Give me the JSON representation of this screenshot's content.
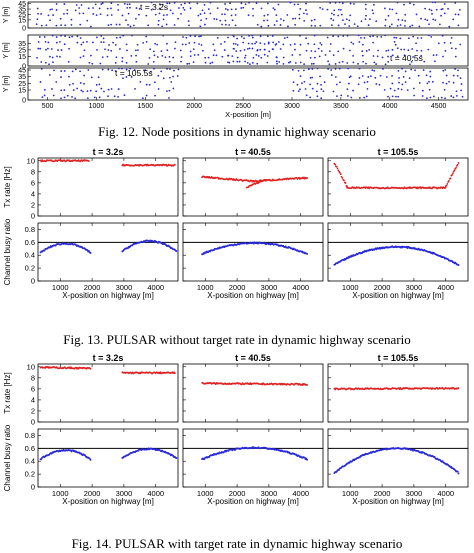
{
  "fig12": {
    "caption": "Fig. 12.   Node positions in dynamic highway scenario",
    "x_label": "X-position [m]",
    "x_ticks": [
      500,
      1000,
      1500,
      2000,
      2500,
      3000,
      3500,
      4000,
      4500
    ],
    "y_axis_label": "Y [m]",
    "panels": [
      {
        "time_label": "t = 3.2s",
        "y_ticks": [
          0,
          15,
          25,
          35,
          45
        ],
        "occupied_x": [
          [
            380,
            2320
          ],
          [
            2300,
            4720
          ]
        ]
      },
      {
        "time_label": "t = 40.5s",
        "y_ticks": [
          0,
          15,
          25,
          35
        ],
        "occupied_x": [
          [
            380,
            2820
          ],
          [
            2300,
            4720
          ]
        ]
      },
      {
        "time_label": "t = 105.5s",
        "y_ticks": [
          0,
          15,
          25,
          35,
          45
        ],
        "occupied_x": [
          [
            380,
            1850
          ],
          [
            3000,
            4720
          ]
        ]
      }
    ],
    "colors": {
      "points": "#2a2ad8"
    }
  },
  "fig13": {
    "caption": "Fig. 13.   PULSAR without target rate in dynamic highway scenario",
    "times": [
      "t = 3.2s",
      "t = 40.5s",
      "t = 105.5s"
    ],
    "top_ylabel": "Tx rate [Hz]",
    "bottom_ylabel": "Channel busy ratio",
    "xlabel": "X-position on highway [m]",
    "top_yticks": [
      0,
      2,
      4,
      6,
      8,
      10
    ],
    "bottom_yticks": [
      0,
      0.2,
      0.4,
      0.6,
      0.8
    ],
    "x_ticks": [
      1000,
      2000,
      3000,
      4000
    ],
    "reference_line": 0.6,
    "tx_rate": [
      {
        "segments": [
          {
            "x": [
              380,
              1900
            ],
            "y_start": 10,
            "y_end": 10
          },
          {
            "x": [
              2950,
              4600
            ],
            "y_start": 9.2,
            "y_end": 9.2
          }
        ]
      },
      {
        "segments": [
          {
            "x": [
              900,
              2500
            ],
            "y_start": 7.1,
            "y_end": 6.3
          },
          {
            "x": [
              2300,
              2900
            ],
            "y_start": 5.2,
            "y_end": 6.6
          },
          {
            "x": [
              2500,
              4200
            ],
            "y_start": 6.3,
            "y_end": 6.9
          }
        ]
      },
      {
        "segments": [
          {
            "x": [
              500,
              900
            ],
            "y_start": 9.6,
            "y_end": 5.3
          },
          {
            "x": [
              900,
              4000
            ],
            "y_start": 5.1,
            "y_end": 5.1
          },
          {
            "x": [
              4000,
              4400
            ],
            "y_start": 5.3,
            "y_end": 9.6
          }
        ]
      }
    ],
    "cbr": [
      {
        "arcs": [
          {
            "x": [
              380,
              1950
            ],
            "ends": 0.44,
            "peak": 0.58
          },
          {
            "x": [
              2950,
              4650
            ],
            "ends": 0.46,
            "peak": 0.62
          }
        ]
      },
      {
        "arcs": [
          {
            "x": [
              900,
              4200
            ],
            "ends": 0.42,
            "peak": 0.59
          }
        ]
      },
      {
        "arcs": [
          {
            "x": [
              500,
              4400
            ],
            "ends": 0.25,
            "peak": 0.53
          }
        ]
      }
    ],
    "colors": {
      "tx": "#e02222",
      "cbr": "#2a2ad8",
      "line": "#000000"
    }
  },
  "fig14": {
    "caption": "Fig. 14.   PULSAR with target rate in dynamic highway scenario",
    "times": [
      "t = 3.2s",
      "t = 40.5s",
      "t = 105.5s"
    ],
    "top_ylabel": "Tx rate [Hz]",
    "bottom_ylabel": "Channel busy ratio",
    "xlabel": "X-position on highway [m]",
    "top_yticks": [
      0,
      2,
      4,
      6,
      8,
      10
    ],
    "bottom_yticks": [
      0,
      0.2,
      0.4,
      0.6,
      0.8
    ],
    "x_ticks": [
      1000,
      2000,
      3000,
      4000
    ],
    "reference_line": 0.6,
    "tx_rate": [
      {
        "segments": [
          {
            "x": [
              380,
              1950
            ],
            "y_start": 9.9,
            "y_end": 9.7
          },
          {
            "x": [
              2950,
              4600
            ],
            "y_start": 8.9,
            "y_end": 8.9
          }
        ]
      },
      {
        "segments": [
          {
            "x": [
              900,
              4200
            ],
            "y_start": 7.0,
            "y_end": 6.8
          }
        ]
      },
      {
        "segments": [
          {
            "x": [
              500,
              4400
            ],
            "y_start": 6.0,
            "y_end": 6.1
          }
        ]
      }
    ],
    "cbr": [
      {
        "arcs": [
          {
            "x": [
              380,
              1950
            ],
            "ends": 0.43,
            "peak": 0.57
          },
          {
            "x": [
              2950,
              4650
            ],
            "ends": 0.45,
            "peak": 0.59
          }
        ]
      },
      {
        "arcs": [
          {
            "x": [
              900,
              4200
            ],
            "ends": 0.43,
            "peak": 0.61
          }
        ]
      },
      {
        "arcs": [
          {
            "x": [
              500,
              4400
            ],
            "ends": 0.22,
            "peak": 0.6
          }
        ]
      }
    ],
    "colors": {
      "tx": "#e02222",
      "cbr": "#2a2ad8",
      "line": "#000000"
    }
  },
  "chart_data": [
    {
      "type": "scatter",
      "title": "",
      "xlabel": "X-position [m]",
      "ylabel": "Y [m]",
      "panels": [
        "t = 3.2s",
        "t = 40.5s",
        "t = 105.5s"
      ],
      "xlim": [
        300,
        4800
      ],
      "ylim": [
        0,
        45
      ]
    },
    {
      "type": "scatter",
      "title": "",
      "panels": [
        "t = 3.2s",
        "t = 40.5s",
        "t = 105.5s"
      ],
      "xlabel": "X-position on highway [m]",
      "ylabel": "Tx rate [Hz] / Channel busy ratio",
      "xlim": [
        300,
        4700
      ],
      "ylim_tx": [
        0,
        10.5
      ],
      "ylim_cbr": [
        0,
        0.9
      ]
    },
    {
      "type": "scatter",
      "title": "",
      "panels": [
        "t = 3.2s",
        "t = 40.5s",
        "t = 105.5s"
      ],
      "xlabel": "X-position on highway [m]",
      "ylabel": "Tx rate [Hz] / Channel busy ratio",
      "xlim": [
        300,
        4700
      ],
      "ylim_tx": [
        0,
        10.5
      ],
      "ylim_cbr": [
        0,
        0.9
      ]
    }
  ]
}
